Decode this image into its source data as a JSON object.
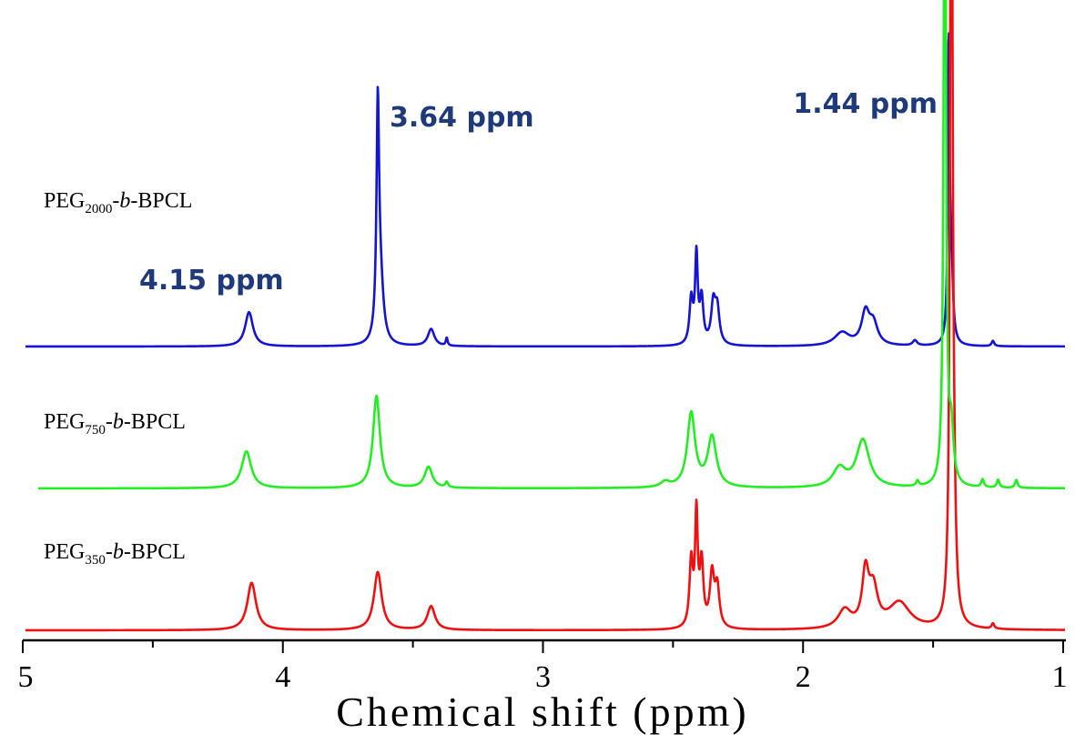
{
  "chart_data": {
    "type": "line",
    "title": "",
    "xlabel": "Chemical shift (ppm)",
    "ylabel": "",
    "xlim": [
      5,
      1
    ],
    "x_reversed": true,
    "x_ticks": [
      "5",
      "4",
      "3",
      "2",
      "1"
    ],
    "x_tick_values": [
      5,
      4,
      3,
      2,
      1
    ],
    "y_axis_visible": false,
    "grid": false,
    "series": [
      {
        "label_parts": [
          "PEG",
          "2000",
          "-",
          "b",
          "-BPCL"
        ],
        "color": "#1414d2",
        "peaks": [
          {
            "ppm": 4.13,
            "height": 0.13,
            "width": 0.018
          },
          {
            "ppm": 3.635,
            "height": 0.84,
            "width": 0.006
          },
          {
            "ppm": 3.625,
            "height": 0.22,
            "width": 0.014
          },
          {
            "ppm": 3.43,
            "height": 0.065,
            "width": 0.015
          },
          {
            "ppm": 3.37,
            "height": 0.03,
            "width": 0.004
          },
          {
            "ppm": 2.43,
            "height": 0.17,
            "width": 0.008
          },
          {
            "ppm": 2.41,
            "height": 0.33,
            "width": 0.006
          },
          {
            "ppm": 2.39,
            "height": 0.17,
            "width": 0.008
          },
          {
            "ppm": 2.345,
            "height": 0.15,
            "width": 0.01
          },
          {
            "ppm": 2.33,
            "height": 0.13,
            "width": 0.01
          },
          {
            "ppm": 1.85,
            "height": 0.05,
            "width": 0.035
          },
          {
            "ppm": 1.76,
            "height": 0.12,
            "width": 0.018
          },
          {
            "ppm": 1.73,
            "height": 0.08,
            "width": 0.02
          },
          {
            "ppm": 1.57,
            "height": 0.02,
            "width": 0.01
          },
          {
            "ppm": 1.44,
            "height": 1.12,
            "width": 0.004
          },
          {
            "ppm": 1.43,
            "height": 0.3,
            "width": 0.007
          },
          {
            "ppm": 1.27,
            "height": 0.02,
            "width": 0.006
          }
        ]
      },
      {
        "label_parts": [
          "PEG",
          "750",
          "-",
          "b",
          "-BPCL"
        ],
        "color": "#22ee22",
        "peaks": [
          {
            "ppm": 4.14,
            "height": 0.14,
            "width": 0.022
          },
          {
            "ppm": 3.64,
            "height": 0.35,
            "width": 0.016
          },
          {
            "ppm": 3.44,
            "height": 0.08,
            "width": 0.018
          },
          {
            "ppm": 3.37,
            "height": 0.02,
            "width": 0.006
          },
          {
            "ppm": 2.53,
            "height": 0.02,
            "width": 0.02
          },
          {
            "ppm": 2.43,
            "height": 0.28,
            "width": 0.018
          },
          {
            "ppm": 2.35,
            "height": 0.19,
            "width": 0.02
          },
          {
            "ppm": 1.86,
            "height": 0.07,
            "width": 0.03
          },
          {
            "ppm": 1.77,
            "height": 0.18,
            "width": 0.03
          },
          {
            "ppm": 1.56,
            "height": 0.02,
            "width": 0.006
          },
          {
            "ppm": 1.455,
            "height": 2.9,
            "width": 0.005
          },
          {
            "ppm": 1.43,
            "height": 0.2,
            "width": 0.01
          },
          {
            "ppm": 1.31,
            "height": 0.03,
            "width": 0.006
          },
          {
            "ppm": 1.25,
            "height": 0.03,
            "width": 0.006
          },
          {
            "ppm": 1.18,
            "height": 0.03,
            "width": 0.006
          }
        ]
      },
      {
        "label_parts": [
          "PEG",
          "350",
          "-",
          "b",
          "-BPCL"
        ],
        "color": "#ee1111",
        "peaks": [
          {
            "ppm": 4.12,
            "height": 0.18,
            "width": 0.02
          },
          {
            "ppm": 3.635,
            "height": 0.22,
            "width": 0.018
          },
          {
            "ppm": 3.43,
            "height": 0.09,
            "width": 0.018
          },
          {
            "ppm": 2.43,
            "height": 0.25,
            "width": 0.008
          },
          {
            "ppm": 2.41,
            "height": 0.42,
            "width": 0.006
          },
          {
            "ppm": 2.39,
            "height": 0.24,
            "width": 0.008
          },
          {
            "ppm": 2.35,
            "height": 0.2,
            "width": 0.01
          },
          {
            "ppm": 2.33,
            "height": 0.15,
            "width": 0.01
          },
          {
            "ppm": 1.84,
            "height": 0.07,
            "width": 0.03
          },
          {
            "ppm": 1.76,
            "height": 0.2,
            "width": 0.015
          },
          {
            "ppm": 1.73,
            "height": 0.14,
            "width": 0.02
          },
          {
            "ppm": 1.63,
            "height": 0.1,
            "width": 0.05
          },
          {
            "ppm": 1.43,
            "height": 3.8,
            "width": 0.005
          },
          {
            "ppm": 1.42,
            "height": 0.3,
            "width": 0.008
          },
          {
            "ppm": 1.27,
            "height": 0.02,
            "width": 0.006
          }
        ]
      }
    ],
    "annotations": [
      {
        "text": "4.15  ppm",
        "ppm": 4.15
      },
      {
        "text": "3.64  ppm",
        "ppm": 3.64
      },
      {
        "text": "1.44  ppm",
        "ppm": 1.44
      }
    ]
  }
}
